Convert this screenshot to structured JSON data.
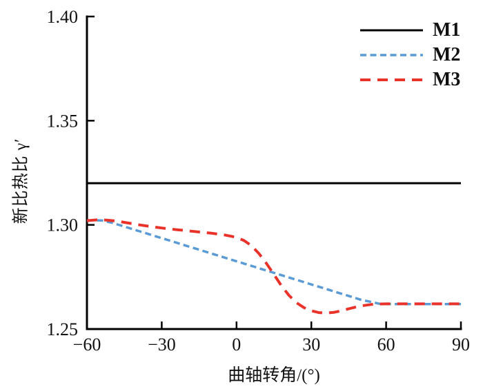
{
  "figure": {
    "background": "#ffffff"
  },
  "chart_data": {
    "type": "line",
    "title": "",
    "xlabel": "曲轴转角/(°)",
    "ylabel": "新比热比 γ′",
    "xlim": [
      -60,
      90
    ],
    "ylim": [
      1.25,
      1.4
    ],
    "grid": false,
    "axis_color": "#000000",
    "xticks": [
      {
        "v": -60,
        "label": "−60"
      },
      {
        "v": -30,
        "label": "−30"
      },
      {
        "v": 0,
        "label": "0"
      },
      {
        "v": 30,
        "label": "30"
      },
      {
        "v": 60,
        "label": "60"
      },
      {
        "v": 90,
        "label": "90"
      }
    ],
    "yticks": [
      {
        "v": 1.25,
        "label": "1.25"
      },
      {
        "v": 1.3,
        "label": "1.30"
      },
      {
        "v": 1.35,
        "label": "1.35"
      },
      {
        "v": 1.4,
        "label": "1.40"
      }
    ],
    "legend": {
      "position": "top-right",
      "entries": [
        "M1",
        "M2",
        "M3"
      ]
    },
    "series": [
      {
        "name": "M1",
        "color": "#000000",
        "style": "solid",
        "width": 3,
        "dash": null,
        "points": [
          [
            -60,
            1.32
          ],
          [
            90,
            1.32
          ]
        ]
      },
      {
        "name": "M2",
        "color": "#5B9BD5",
        "style": "dashed",
        "width": 3.5,
        "dash": [
          9,
          5.5
        ],
        "points": [
          [
            -60,
            1.302
          ],
          [
            -57,
            1.3022
          ],
          [
            -54,
            1.3021
          ],
          [
            -50,
            1.301
          ],
          [
            -45,
            1.2992
          ],
          [
            -40,
            1.2973
          ],
          [
            -35,
            1.2955
          ],
          [
            -30,
            1.2936
          ],
          [
            -25,
            1.2918
          ],
          [
            -20,
            1.2899
          ],
          [
            -15,
            1.2881
          ],
          [
            -10,
            1.2862
          ],
          [
            -5,
            1.2844
          ],
          [
            0,
            1.2825
          ],
          [
            5,
            1.2807
          ],
          [
            10,
            1.2788
          ],
          [
            15,
            1.277
          ],
          [
            20,
            1.2751
          ],
          [
            25,
            1.2733
          ],
          [
            30,
            1.2714
          ],
          [
            35,
            1.2696
          ],
          [
            40,
            1.2677
          ],
          [
            45,
            1.2659
          ],
          [
            50,
            1.264
          ],
          [
            55,
            1.2628
          ],
          [
            57,
            1.2622
          ],
          [
            60,
            1.262
          ],
          [
            65,
            1.262
          ],
          [
            70,
            1.262
          ],
          [
            75,
            1.262
          ],
          [
            80,
            1.262
          ],
          [
            85,
            1.262
          ],
          [
            90,
            1.262
          ]
        ]
      },
      {
        "name": "M3",
        "color": "#E8322A",
        "style": "dashed",
        "width": 4,
        "dash": [
          15,
          10
        ],
        "points": [
          [
            -60,
            1.302
          ],
          [
            -56,
            1.3024
          ],
          [
            -52,
            1.3023
          ],
          [
            -48,
            1.3018
          ],
          [
            -44,
            1.301
          ],
          [
            -40,
            1.3002
          ],
          [
            -35,
            1.2993
          ],
          [
            -30,
            1.2985
          ],
          [
            -25,
            1.2978
          ],
          [
            -20,
            1.2972
          ],
          [
            -15,
            1.2966
          ],
          [
            -10,
            1.296
          ],
          [
            -5,
            1.2952
          ],
          [
            0,
            1.294
          ],
          [
            3,
            1.2925
          ],
          [
            6,
            1.29
          ],
          [
            9,
            1.2862
          ],
          [
            12,
            1.2815
          ],
          [
            15,
            1.2762
          ],
          [
            18,
            1.2708
          ],
          [
            21,
            1.2662
          ],
          [
            24,
            1.2627
          ],
          [
            27,
            1.2603
          ],
          [
            30,
            1.2588
          ],
          [
            33,
            1.2579
          ],
          [
            36,
            1.2577
          ],
          [
            39,
            1.258
          ],
          [
            42,
            1.2588
          ],
          [
            45,
            1.2597
          ],
          [
            48,
            1.2606
          ],
          [
            51,
            1.2613
          ],
          [
            54,
            1.2618
          ],
          [
            57,
            1.262
          ],
          [
            60,
            1.2621
          ],
          [
            65,
            1.2621
          ],
          [
            70,
            1.2621
          ],
          [
            75,
            1.2621
          ],
          [
            80,
            1.2621
          ],
          [
            85,
            1.2621
          ],
          [
            90,
            1.2621
          ]
        ]
      }
    ]
  }
}
